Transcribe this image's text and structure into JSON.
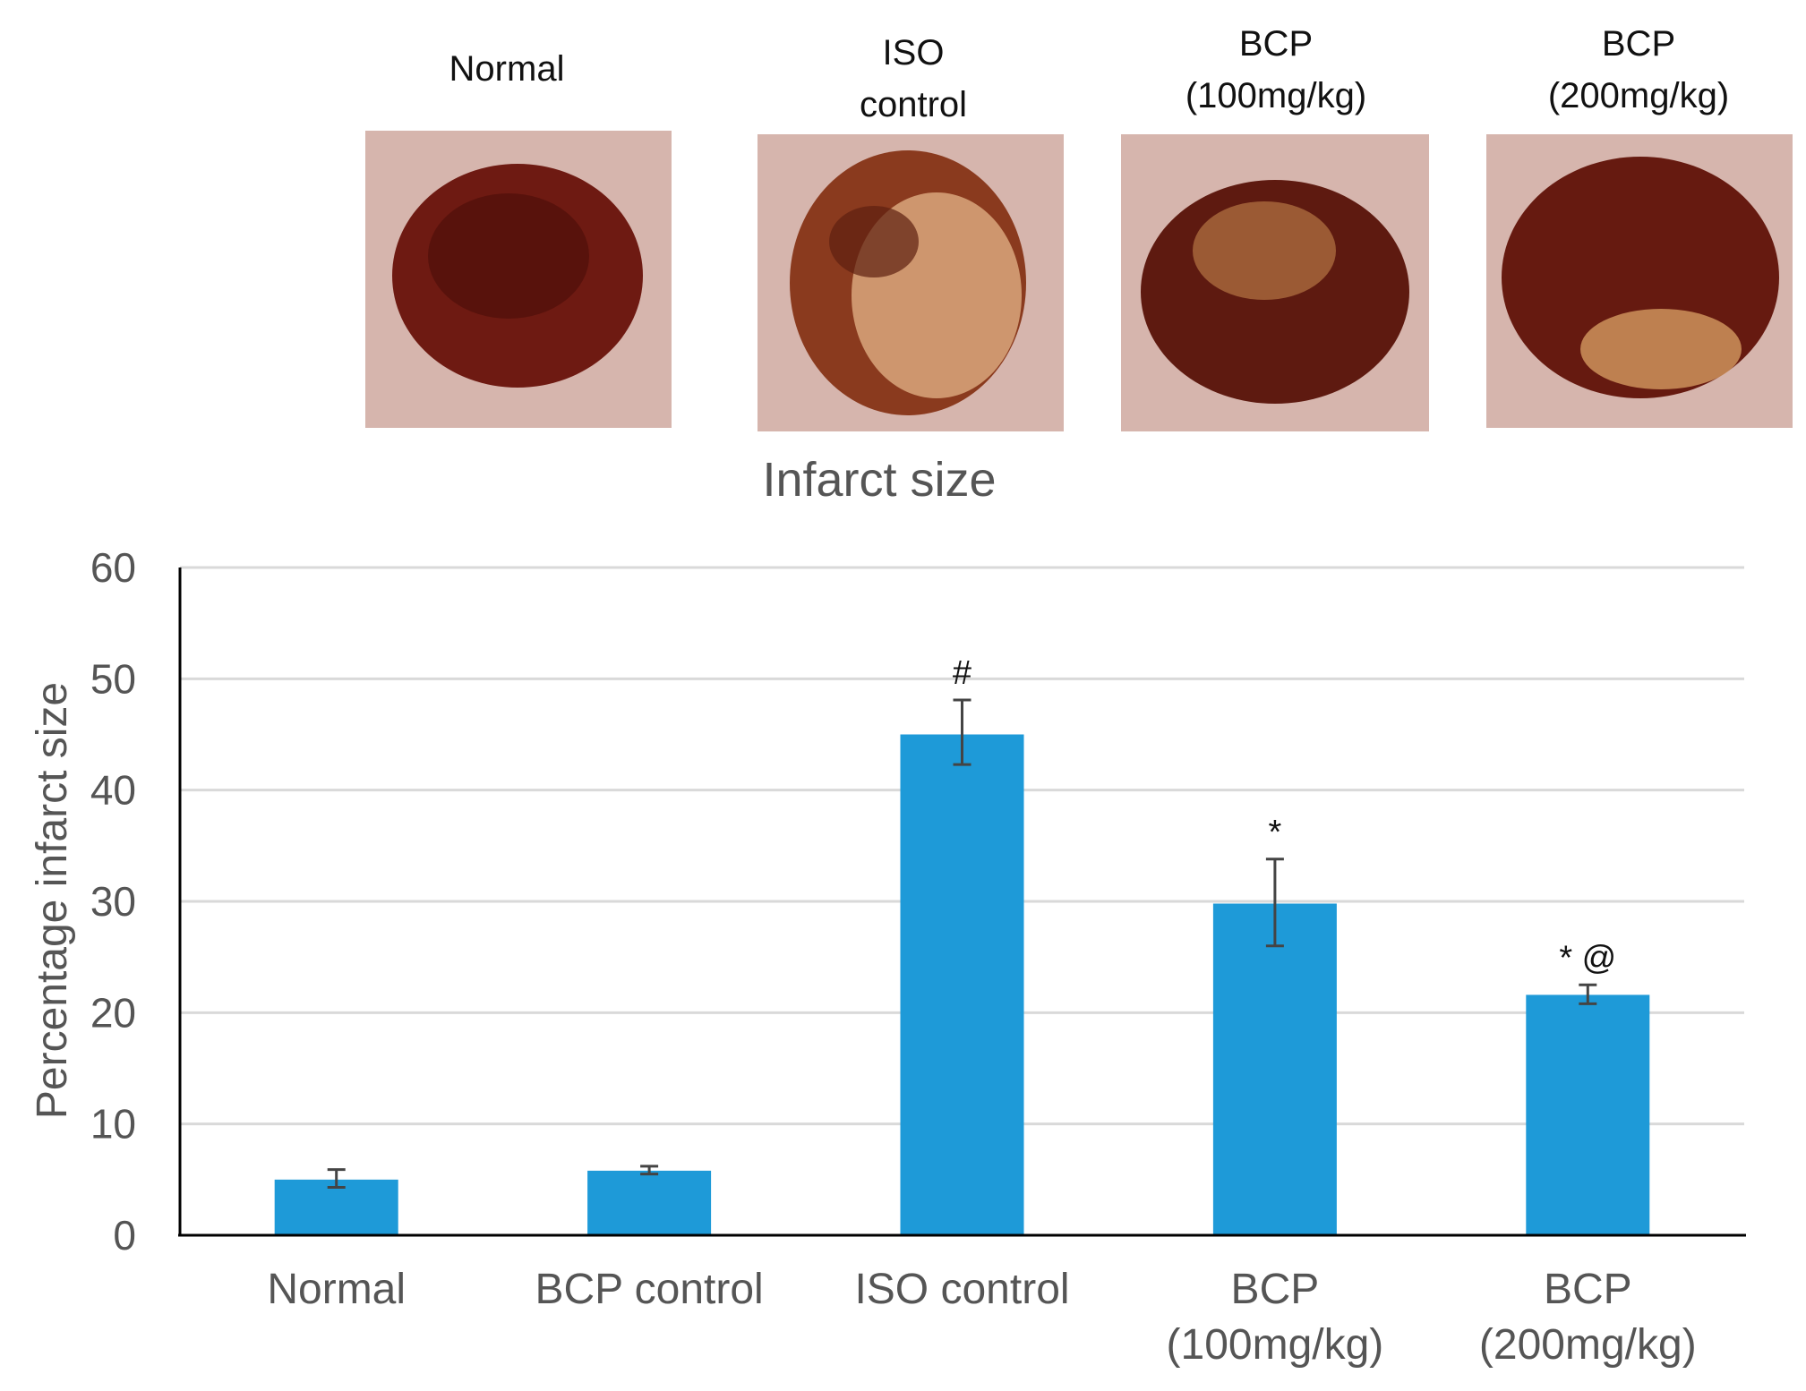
{
  "photo_panel": {
    "labels": [
      {
        "lines": [
          "Normal"
        ]
      },
      {
        "lines": [
          "ISO",
          "control"
        ]
      },
      {
        "lines": [
          "BCP",
          "(100mg/kg)"
        ]
      },
      {
        "lines": [
          "BCP",
          "(200mg/kg)"
        ]
      }
    ],
    "photos": [
      {
        "name": "normal-heart-photo",
        "tissue": "#6e1a12",
        "pale": 0.05
      },
      {
        "name": "iso-control-heart-photo",
        "tissue": "#8a3a1e",
        "pale": 0.55
      },
      {
        "name": "bcp-100-heart-photo",
        "tissue": "#5e1a10",
        "pale": 0.3
      },
      {
        "name": "bcp-200-heart-photo",
        "tissue": "#661a10",
        "pale": 0.2
      }
    ]
  },
  "chart_data": {
    "type": "bar",
    "title": "Infarct size",
    "xlabel": "",
    "ylabel": "Percentage infarct size",
    "ylim": [
      0,
      60
    ],
    "yticks": [
      0,
      10,
      20,
      30,
      40,
      50,
      60
    ],
    "grid": true,
    "bar_color": "#1e9ad8",
    "categories": [
      [
        "Normal"
      ],
      [
        "BCP control"
      ],
      [
        "ISO  control"
      ],
      [
        "BCP",
        "(100mg/kg)"
      ],
      [
        "BCP",
        "(200mg/kg)"
      ]
    ],
    "values": [
      5,
      5.8,
      45,
      29.8,
      21.6
    ],
    "error_low": [
      4.3,
      5.5,
      42.3,
      26,
      20.8
    ],
    "error_high": [
      5.9,
      6.2,
      48.1,
      33.8,
      22.5
    ],
    "annotations": [
      "",
      "",
      "#",
      "*",
      "* @"
    ]
  }
}
